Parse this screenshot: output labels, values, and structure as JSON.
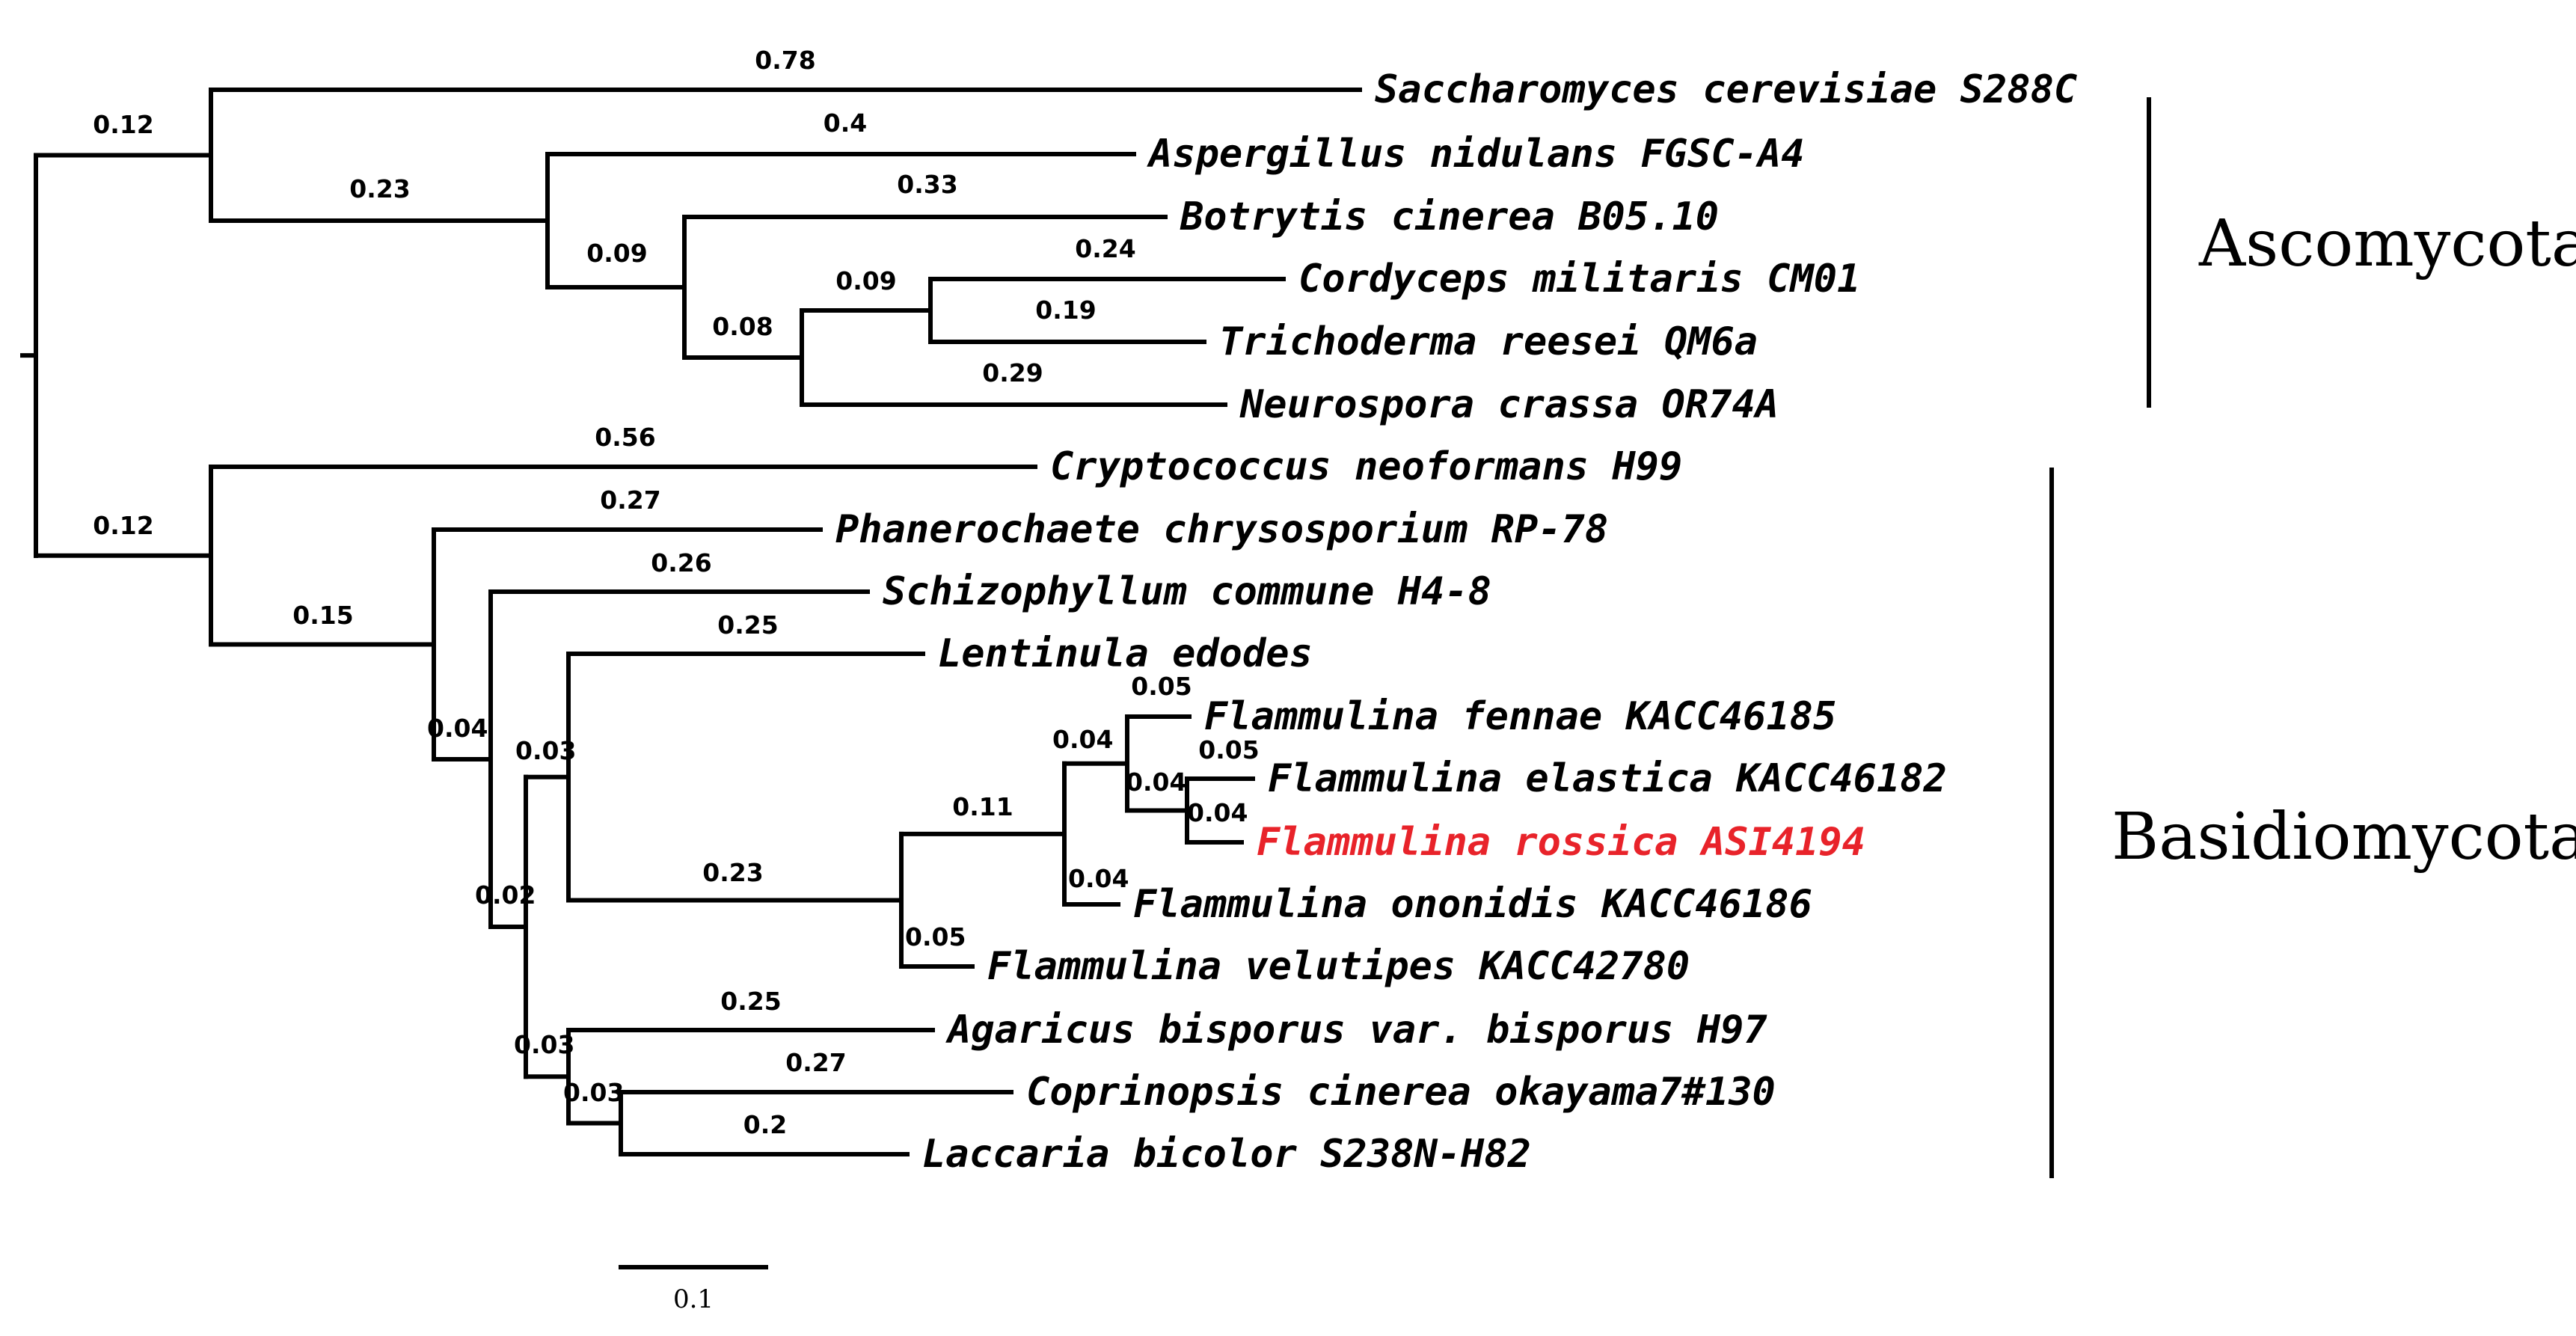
{
  "colors": {
    "line": "#000000",
    "highlight": "#e8232a"
  },
  "taxa": [
    {
      "id": "scer",
      "label": "Saccharomyces cerevisiae S288C"
    },
    {
      "id": "anid",
      "label": "Aspergillus nidulans FGSC-A4"
    },
    {
      "id": "bcin",
      "label": "Botrytis cinerea B05.10"
    },
    {
      "id": "cmil",
      "label": "Cordyceps militaris CM01"
    },
    {
      "id": "tree",
      "label": "Trichoderma reesei QM6a"
    },
    {
      "id": "ncra",
      "label": "Neurospora crassa OR74A"
    },
    {
      "id": "cneo",
      "label": "Cryptococcus neoformans H99"
    },
    {
      "id": "pchr",
      "label": "Phanerochaete chrysosporium RP-78"
    },
    {
      "id": "scom",
      "label": "Schizophyllum commune H4-8"
    },
    {
      "id": "ledo",
      "label": "Lentinula edodes"
    },
    {
      "id": "ffen",
      "label": "Flammulina fennae KACC46185"
    },
    {
      "id": "fela",
      "label": "Flammulina elastica KACC46182"
    },
    {
      "id": "fros",
      "label": "Flammulina rossica ASI4194",
      "highlight": true
    },
    {
      "id": "fono",
      "label": "Flammulina ononidis KACC46186"
    },
    {
      "id": "fvel",
      "label": "Flammulina velutipes KACC42780"
    },
    {
      "id": "abis",
      "label": "Agaricus bisporus var. bisporus H97"
    },
    {
      "id": "ccin",
      "label": "Coprinopsis cinerea okayama7#130"
    },
    {
      "id": "lbic",
      "label": "Laccaria bicolor S238N-H82"
    }
  ],
  "branch_lengths": [
    {
      "id": "asco-stem",
      "value": "0.12"
    },
    {
      "id": "scer",
      "value": "0.78"
    },
    {
      "id": "n-ascrest",
      "value": "0.23"
    },
    {
      "id": "anid",
      "value": "0.4"
    },
    {
      "id": "n-leotio",
      "value": "0.09"
    },
    {
      "id": "bcin",
      "value": "0.33"
    },
    {
      "id": "n-sordario",
      "value": "0.08"
    },
    {
      "id": "n-hypo",
      "value": "0.09"
    },
    {
      "id": "cmil",
      "value": "0.24"
    },
    {
      "id": "tree",
      "value": "0.19"
    },
    {
      "id": "ncra",
      "value": "0.29"
    },
    {
      "id": "basidio-stem",
      "value": "0.12"
    },
    {
      "id": "cneo",
      "value": "0.56"
    },
    {
      "id": "n-agarico",
      "value": "0.15"
    },
    {
      "id": "pchr",
      "value": "0.27"
    },
    {
      "id": "n-n04",
      "value": "0.04"
    },
    {
      "id": "scom",
      "value": "0.26"
    },
    {
      "id": "n-n02",
      "value": "0.02"
    },
    {
      "id": "n-n03a",
      "value": "0.03"
    },
    {
      "id": "ledo",
      "value": "0.25"
    },
    {
      "id": "n-flam",
      "value": "0.23"
    },
    {
      "id": "n-flam2",
      "value": "0.11"
    },
    {
      "id": "n-fen",
      "value": "0.04"
    },
    {
      "id": "ffen",
      "value": "0.05"
    },
    {
      "id": "n-ela",
      "value": "0.04"
    },
    {
      "id": "fela",
      "value": "0.05"
    },
    {
      "id": "fros",
      "value": "0.04"
    },
    {
      "id": "fono",
      "value": "0.04"
    },
    {
      "id": "fvel",
      "value": "0.05"
    },
    {
      "id": "n-n03b",
      "value": "0.03"
    },
    {
      "id": "abis",
      "value": "0.25"
    },
    {
      "id": "n-n03c",
      "value": "0.03"
    },
    {
      "id": "ccin",
      "value": "0.27"
    },
    {
      "id": "lbic",
      "value": "0.2"
    }
  ],
  "clades": [
    {
      "id": "ascomycota",
      "label": "Ascomycota"
    },
    {
      "id": "basidiomycota",
      "label": "Basidiomycota"
    }
  ],
  "scale_bar": {
    "label": "0.1",
    "length": 0.1
  }
}
